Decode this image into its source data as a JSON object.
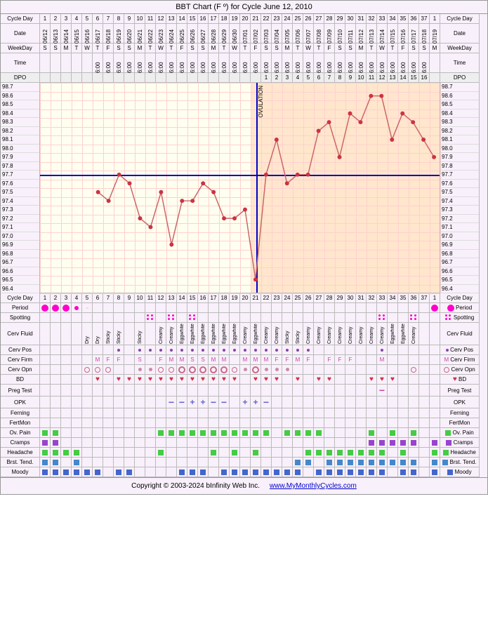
{
  "title": "BBT Chart (F º) for Cycle June 12, 2010",
  "footer_copyright": "Copyright © 2003-2024 bInfinity Web Inc.",
  "footer_link": "www.MyMonthlyCycles.com",
  "rows": {
    "cycle_day": "Cycle Day",
    "date": "Date",
    "weekday": "WeekDay",
    "time": "Time",
    "dpo": "DPO",
    "period": "Period",
    "spotting": "Spotting",
    "cerv_fluid": "Cerv Fluid",
    "cerv_pos": "Cerv Pos",
    "cerv_firm": "Cerv Firm",
    "cerv_opn": "Cerv Opn",
    "bd": "BD",
    "preg_test": "Preg Test",
    "opk": "OPK",
    "ferning": "Ferning",
    "fertmon": "FertMon",
    "ov_pain": "Ov. Pain",
    "cramps": "Cramps",
    "headache": "Headache",
    "brst_tend": "Brst. Tend.",
    "moody": "Moody"
  },
  "temp_axis": {
    "min": 96.4,
    "max": 98.7,
    "step": 0.1,
    "labels": [
      "98.7",
      "98.6",
      "98.5",
      "98.4",
      "98.3",
      "98.2",
      "98.1",
      "98.0",
      "97.9",
      "97.8",
      "97.7",
      "97.6",
      "97.5",
      "97.4",
      "97.3",
      "97.2",
      "97.1",
      "97.0",
      "96.9",
      "96.8",
      "96.7",
      "96.6",
      "96.5",
      "96.4"
    ]
  },
  "chart": {
    "ovulation_day": 21,
    "coverline_temp": 97.7,
    "luteal_start_day": 21,
    "point_color": "#cc3344",
    "line_color": "#cc6666",
    "bg_follicular": "#fffff0",
    "bg_luteal": "#ffe6cc",
    "grid_color": "#ffd0d0",
    "coverline_color": "#0000cc",
    "ovline_color": "#0000cc"
  },
  "days": [
    {
      "cd": 1,
      "date": "06/12",
      "wd": "S",
      "time": "",
      "dpo": "",
      "temp": null,
      "period": "heavy",
      "ovpain": true,
      "cramps": true,
      "headache": true,
      "brst": true,
      "moody": true
    },
    {
      "cd": 2,
      "date": "06/13",
      "wd": "S",
      "time": "",
      "dpo": "",
      "temp": null,
      "period": "heavy",
      "ovpain": true,
      "cramps": true,
      "headache": true,
      "brst": true,
      "moody": true
    },
    {
      "cd": 3,
      "date": "06/14",
      "wd": "M",
      "time": "",
      "dpo": "",
      "temp": null,
      "period": "heavy",
      "headache": true,
      "moody": true
    },
    {
      "cd": 4,
      "date": "06/15",
      "wd": "T",
      "time": "",
      "dpo": "",
      "temp": null,
      "period": "med",
      "headache": true,
      "brst": true,
      "moody": true
    },
    {
      "cd": 5,
      "date": "06/16",
      "wd": "W",
      "time": "",
      "dpo": "",
      "temp": null,
      "period": "light",
      "cf": "Dry",
      "copn": "o",
      "moody": true
    },
    {
      "cd": 6,
      "date": "06/17",
      "wd": "T",
      "time": "6:00",
      "dpo": "",
      "temp": 97.5,
      "cf": "Dry",
      "cfirm": "M",
      "bd": true,
      "copn": "o",
      "moody": true
    },
    {
      "cd": 7,
      "date": "06/18",
      "wd": "F",
      "time": "6:00",
      "dpo": "",
      "temp": 97.4,
      "cf": "Sticky",
      "cfirm": "F",
      "copn": "o"
    },
    {
      "cd": 8,
      "date": "06/19",
      "wd": "S",
      "time": "6:00",
      "dpo": "",
      "temp": 97.7,
      "cf": "Sticky",
      "cpos": true,
      "cfirm": "F",
      "bd": true,
      "moody": true
    },
    {
      "cd": 9,
      "date": "06/20",
      "wd": "S",
      "time": "6:00",
      "dpo": "",
      "temp": 97.6,
      "bd": true,
      "moody": true
    },
    {
      "cd": 10,
      "date": "06/21",
      "wd": "M",
      "time": "6:00",
      "dpo": "",
      "temp": 97.2,
      "cf": "Sticky",
      "cpos": true,
      "cfirm": "S",
      "copn": "d",
      "bd": true
    },
    {
      "cd": 11,
      "date": "06/22",
      "wd": "T",
      "time": "6:00",
      "dpo": "",
      "temp": 97.1,
      "spot": true,
      "cpos": true,
      "copn": "d",
      "bd": true
    },
    {
      "cd": 12,
      "date": "06/23",
      "wd": "W",
      "time": "6:00",
      "dpo": "",
      "temp": 97.5,
      "cf": "Creamy",
      "cpos": true,
      "cfirm": "F",
      "copn": "o",
      "bd": true,
      "ovpain": true,
      "headache": true
    },
    {
      "cd": 13,
      "date": "06/24",
      "wd": "T",
      "time": "6:00",
      "dpo": "",
      "temp": 96.9,
      "spot": true,
      "cf": "Creamy",
      "cpos": true,
      "cfirm": "M",
      "copn": "o",
      "bd": true,
      "opk": "-",
      "ovpain": true
    },
    {
      "cd": 14,
      "date": "06/25",
      "wd": "F",
      "time": "6:00",
      "dpo": "",
      "temp": 97.4,
      "cf": "Eggwhite",
      "cpos": true,
      "cfirm": "M",
      "copn": "O",
      "bd": true,
      "opk": "-",
      "ovpain": true,
      "moody": true
    },
    {
      "cd": 15,
      "date": "06/26",
      "wd": "S",
      "time": "6:00",
      "dpo": "",
      "temp": 97.4,
      "spot": true,
      "cf": "Eggwhite",
      "cpos": true,
      "cfirm": "S",
      "copn": "O",
      "bd": true,
      "opk": "+",
      "ovpain": true,
      "moody": true
    },
    {
      "cd": 16,
      "date": "06/27",
      "wd": "S",
      "time": "6:00",
      "dpo": "",
      "temp": 97.6,
      "cf": "Eggwhite",
      "cpos": true,
      "cfirm": "S",
      "copn": "O",
      "bd": true,
      "opk": "+",
      "ovpain": true,
      "moody": true
    },
    {
      "cd": 17,
      "date": "06/28",
      "wd": "M",
      "time": "6:00",
      "dpo": "",
      "temp": 97.5,
      "cf": "Eggwhite",
      "cpos": true,
      "cfirm": "M",
      "copn": "O",
      "bd": true,
      "opk": "-",
      "ovpain": true,
      "headache": true
    },
    {
      "cd": 18,
      "date": "06/29",
      "wd": "T",
      "time": "6:00",
      "dpo": "",
      "temp": 97.2,
      "cf": "Eggwhite",
      "cpos": true,
      "cfirm": "M",
      "copn": "O",
      "bd": true,
      "opk": "-",
      "ovpain": true,
      "moody": true
    },
    {
      "cd": 19,
      "date": "06/30",
      "wd": "W",
      "time": "6:00",
      "dpo": "",
      "temp": 97.2,
      "cf": "Eggwhite",
      "cpos": true,
      "copn": "o",
      "bd": true,
      "ovpain": true,
      "headache": true,
      "moody": true
    },
    {
      "cd": 20,
      "date": "07/01",
      "wd": "T",
      "time": "6:00",
      "dpo": "",
      "temp": 97.3,
      "cf": "Creamy",
      "cpos": true,
      "cfirm": "M",
      "copn": "d",
      "opk": "+",
      "ovpain": true,
      "moody": true
    },
    {
      "cd": 21,
      "date": "07/02",
      "wd": "F",
      "time": "6:00",
      "dpo": "",
      "temp": 96.5,
      "cf": "Eggwhite",
      "cpos": true,
      "cfirm": "M",
      "copn": "O",
      "bd": true,
      "opk": "+",
      "ovpain": true,
      "headache": true,
      "moody": true
    },
    {
      "cd": 22,
      "date": "07/03",
      "wd": "S",
      "time": "6:00",
      "dpo": 1,
      "temp": 97.7,
      "cf": "Creamy",
      "cpos": true,
      "cfirm": "M",
      "copn": "d",
      "bd": true,
      "opk": "-",
      "ovpain": true,
      "moody": true
    },
    {
      "cd": 23,
      "date": "07/04",
      "wd": "S",
      "time": "6:00",
      "dpo": 2,
      "temp": 98.1,
      "cf": "Creamy",
      "cpos": true,
      "cfirm": "F",
      "copn": "d",
      "bd": true,
      "moody": true
    },
    {
      "cd": 24,
      "date": "07/05",
      "wd": "M",
      "time": "6:00",
      "dpo": 3,
      "temp": 97.6,
      "cf": "Sticky",
      "cpos": true,
      "cfirm": "F",
      "copn": "d",
      "ovpain": true,
      "moody": true
    },
    {
      "cd": 25,
      "date": "07/06",
      "wd": "T",
      "time": "6:00",
      "dpo": 4,
      "temp": 97.7,
      "cf": "Sticky",
      "cpos": true,
      "cfirm": "M",
      "bd": true,
      "ovpain": true,
      "brst": true,
      "moody": true
    },
    {
      "cd": 26,
      "date": "07/07",
      "wd": "W",
      "time": "6:00",
      "dpo": 5,
      "temp": 97.7,
      "cf": "Creamy",
      "cpos": true,
      "cfirm": "F",
      "ovpain": true,
      "headache": true,
      "brst": true
    },
    {
      "cd": 27,
      "date": "07/08",
      "wd": "T",
      "time": "6:00",
      "dpo": 6,
      "temp": 98.2,
      "cf": "Creamy",
      "bd": true,
      "ovpain": true,
      "headache": true,
      "moody": true
    },
    {
      "cd": 28,
      "date": "07/09",
      "wd": "F",
      "time": "6:00",
      "dpo": 7,
      "temp": 98.3,
      "cf": "Creamy",
      "cfirm": "F",
      "bd": true,
      "headache": true,
      "brst": true,
      "moody": true
    },
    {
      "cd": 29,
      "date": "07/10",
      "wd": "S",
      "time": "6:00",
      "dpo": 8,
      "temp": 97.9,
      "cf": "Creamy",
      "cfirm": "F",
      "headache": true,
      "brst": true,
      "moody": true
    },
    {
      "cd": 30,
      "date": "07/11",
      "wd": "S",
      "time": "6:00",
      "dpo": 9,
      "temp": 98.4,
      "cf": "Creamy",
      "cfirm": "F",
      "headache": true,
      "brst": true,
      "moody": true
    },
    {
      "cd": 31,
      "date": "07/12",
      "wd": "M",
      "time": "6:00",
      "dpo": 10,
      "temp": 98.3,
      "cf": "Creamy",
      "headache": true,
      "brst": true,
      "moody": true
    },
    {
      "cd": 32,
      "date": "07/13",
      "wd": "T",
      "time": "6:00",
      "dpo": 11,
      "temp": 98.6,
      "cf": "Creamy",
      "bd": true,
      "ovpain": true,
      "cramps": true,
      "headache": true,
      "brst": true,
      "moody": true
    },
    {
      "cd": 33,
      "date": "07/14",
      "wd": "W",
      "time": "6:00",
      "dpo": 12,
      "temp": 98.6,
      "spot": true,
      "cf": "Creamy",
      "cpos": true,
      "cfirm": "M",
      "bd": true,
      "preg": "-",
      "cramps": true,
      "headache": true,
      "brst": true,
      "moody": true
    },
    {
      "cd": 34,
      "date": "07/15",
      "wd": "T",
      "time": "6:00",
      "dpo": 13,
      "temp": 98.1,
      "cf": "Eggwhite",
      "bd": true,
      "ovpain": true,
      "cramps": true,
      "brst": true
    },
    {
      "cd": 35,
      "date": "07/16",
      "wd": "F",
      "time": "6:00",
      "dpo": 14,
      "temp": 98.4,
      "cf": "Eggwhite",
      "cramps": true,
      "headache": true,
      "brst": true,
      "moody": true
    },
    {
      "cd": 36,
      "date": "07/17",
      "wd": "S",
      "time": "6:00",
      "dpo": 15,
      "temp": 98.3,
      "spot": true,
      "cf": "Creamy",
      "copn": "o",
      "ovpain": true,
      "cramps": true,
      "brst": true,
      "moody": true
    },
    {
      "cd": 37,
      "date": "07/18",
      "wd": "S",
      "time": "6:00",
      "dpo": 16,
      "temp": 98.1
    },
    {
      "cd": 1,
      "date": "07/19",
      "wd": "M",
      "time": "",
      "dpo": "",
      "temp": 97.9,
      "period": "heavy",
      "cramps": true,
      "headache": true,
      "brst": true,
      "moody": true
    }
  ]
}
